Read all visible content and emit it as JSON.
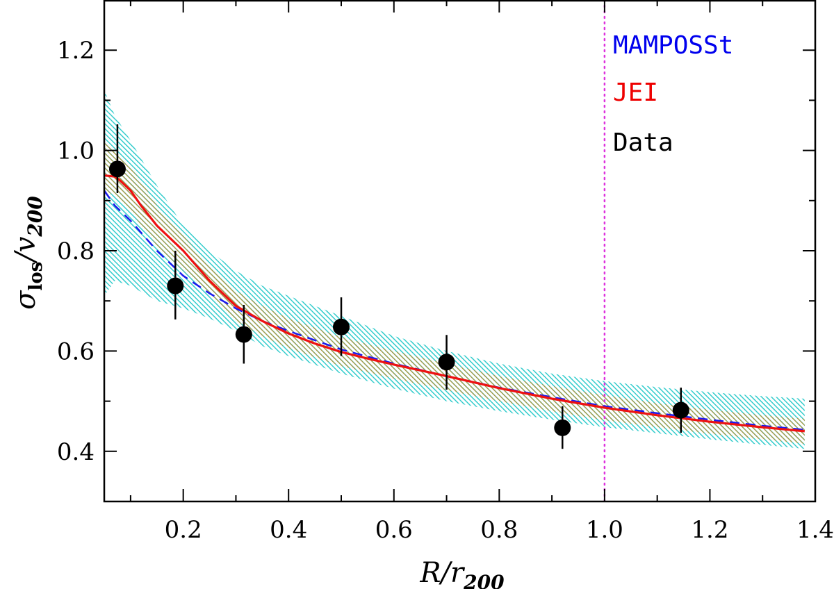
{
  "chart_data": {
    "type": "line",
    "title": "",
    "xlabel": "R/r200",
    "ylabel": "σlos/v200",
    "xlim": [
      0.05,
      1.4
    ],
    "ylim": [
      0.3,
      1.3
    ],
    "x_ticks": [
      0.2,
      0.4,
      0.6,
      0.8,
      1.0,
      1.2,
      1.4
    ],
    "x_tick_labels": [
      "0.2",
      "0.4",
      "0.6",
      "0.8",
      "1.0",
      "1.2",
      "1.4"
    ],
    "y_ticks": [
      0.4,
      0.6,
      0.8,
      1.0,
      1.2
    ],
    "y_tick_labels": [
      "0.4",
      "0.6",
      "0.8",
      "1.0",
      "1.2"
    ],
    "reference_line": {
      "x": 1.0,
      "style": "dotted",
      "color": "#dd33dd"
    },
    "legend": [
      {
        "label": "MAMPOSSt",
        "color": "#0000ee"
      },
      {
        "label": "JEI",
        "color": "#ee0000"
      },
      {
        "label": "Data",
        "color": "#000000"
      }
    ],
    "series": [
      {
        "name": "MAMPOSSt",
        "style": "dashed",
        "color": "#1a1aee",
        "x": [
          0.05,
          0.07,
          0.1,
          0.15,
          0.2,
          0.25,
          0.3,
          0.35,
          0.4,
          0.5,
          0.6,
          0.7,
          0.8,
          0.9,
          1.0,
          1.1,
          1.2,
          1.3,
          1.38
        ],
        "y": [
          0.92,
          0.89,
          0.86,
          0.8,
          0.75,
          0.715,
          0.685,
          0.66,
          0.64,
          0.603,
          0.575,
          0.55,
          0.527,
          0.508,
          0.49,
          0.476,
          0.463,
          0.451,
          0.443
        ]
      },
      {
        "name": "JEI",
        "style": "solid",
        "color": "#ee1111",
        "x": [
          0.05,
          0.07,
          0.08,
          0.1,
          0.12,
          0.15,
          0.2,
          0.25,
          0.3,
          0.35,
          0.4,
          0.45,
          0.5,
          0.55,
          0.6,
          0.7,
          0.8,
          0.9,
          1.0,
          1.1,
          1.2,
          1.3,
          1.38
        ],
        "y": [
          0.95,
          0.948,
          0.94,
          0.92,
          0.89,
          0.85,
          0.8,
          0.74,
          0.69,
          0.66,
          0.635,
          0.615,
          0.598,
          0.585,
          0.573,
          0.55,
          0.526,
          0.505,
          0.487,
          0.472,
          0.459,
          0.448,
          0.44
        ]
      }
    ],
    "bands": [
      {
        "name": "MAMPOSSt band",
        "color": "#33cccc",
        "x": [
          0.05,
          0.07,
          0.1,
          0.15,
          0.2,
          0.25,
          0.3,
          0.35,
          0.4,
          0.5,
          0.6,
          0.7,
          0.8,
          0.9,
          1.0,
          1.1,
          1.2,
          1.3,
          1.38
        ],
        "upper": [
          1.12,
          1.07,
          1.02,
          0.93,
          0.85,
          0.8,
          0.76,
          0.73,
          0.71,
          0.67,
          0.63,
          0.6,
          0.575,
          0.555,
          0.54,
          0.528,
          0.518,
          0.51,
          0.505
        ],
        "lower": [
          0.71,
          0.74,
          0.73,
          0.7,
          0.685,
          0.665,
          0.64,
          0.61,
          0.59,
          0.555,
          0.525,
          0.5,
          0.48,
          0.463,
          0.448,
          0.436,
          0.424,
          0.413,
          0.405
        ]
      },
      {
        "name": "JEI band",
        "color": "#cc9933",
        "x": [
          0.05,
          0.07,
          0.1,
          0.12,
          0.15,
          0.2,
          0.25,
          0.3,
          0.35,
          0.4,
          0.5,
          0.6,
          0.7,
          0.8,
          0.9,
          1.0,
          1.1,
          1.2,
          1.3,
          1.38
        ],
        "upper": [
          1.02,
          1.0,
          0.965,
          0.94,
          0.89,
          0.83,
          0.77,
          0.72,
          0.69,
          0.665,
          0.628,
          0.6,
          0.575,
          0.55,
          0.53,
          0.512,
          0.496,
          0.483,
          0.472,
          0.465
        ],
        "lower": [
          0.92,
          0.91,
          0.88,
          0.85,
          0.81,
          0.76,
          0.71,
          0.66,
          0.63,
          0.605,
          0.57,
          0.545,
          0.522,
          0.5,
          0.48,
          0.462,
          0.448,
          0.435,
          0.424,
          0.415
        ]
      }
    ],
    "points": [
      {
        "x": 0.075,
        "y": 0.963,
        "yerr_low": 0.915,
        "yerr_high": 1.052
      },
      {
        "x": 0.185,
        "y": 0.73,
        "yerr_low": 0.663,
        "yerr_high": 0.8
      },
      {
        "x": 0.315,
        "y": 0.633,
        "yerr_low": 0.575,
        "yerr_high": 0.692
      },
      {
        "x": 0.5,
        "y": 0.648,
        "yerr_low": 0.59,
        "yerr_high": 0.707
      },
      {
        "x": 0.7,
        "y": 0.578,
        "yerr_low": 0.523,
        "yerr_high": 0.632
      },
      {
        "x": 0.92,
        "y": 0.447,
        "yerr_low": 0.405,
        "yerr_high": 0.49
      },
      {
        "x": 1.145,
        "y": 0.482,
        "yerr_low": 0.437,
        "yerr_high": 0.527
      }
    ]
  }
}
